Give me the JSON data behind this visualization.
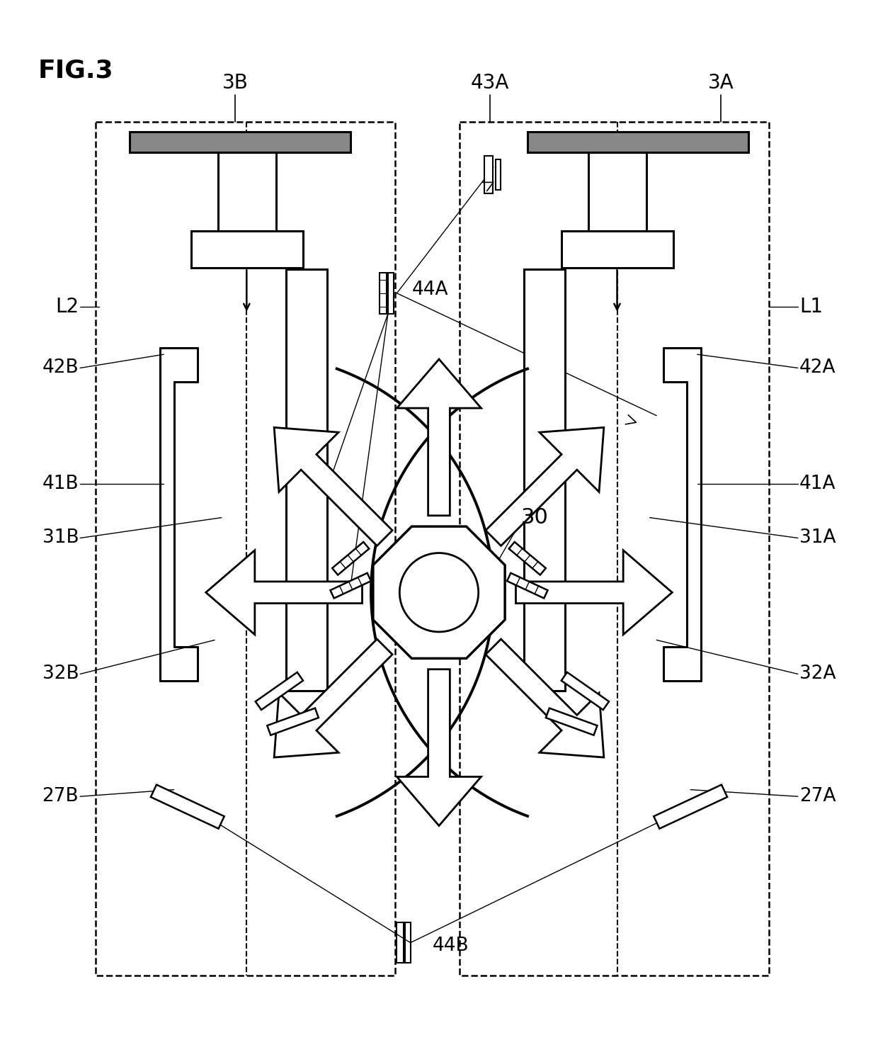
{
  "title": "FIG.3",
  "bg": "#ffffff",
  "lc": "#000000",
  "fw": 12.4,
  "fh": 14.92,
  "dpi": 100,
  "labels": {
    "title": "FIG.3",
    "3A": "3A",
    "3B": "3B",
    "L1": "L1",
    "L2": "L2",
    "42A": "42A",
    "42B": "42B",
    "41A": "41A",
    "41B": "41B",
    "31A": "31A",
    "31B": "31B",
    "32A": "32A",
    "32B": "32B",
    "27A": "27A",
    "27B": "27B",
    "43A": "43A",
    "44A": "44A",
    "44B": "44B",
    "30": "30"
  }
}
